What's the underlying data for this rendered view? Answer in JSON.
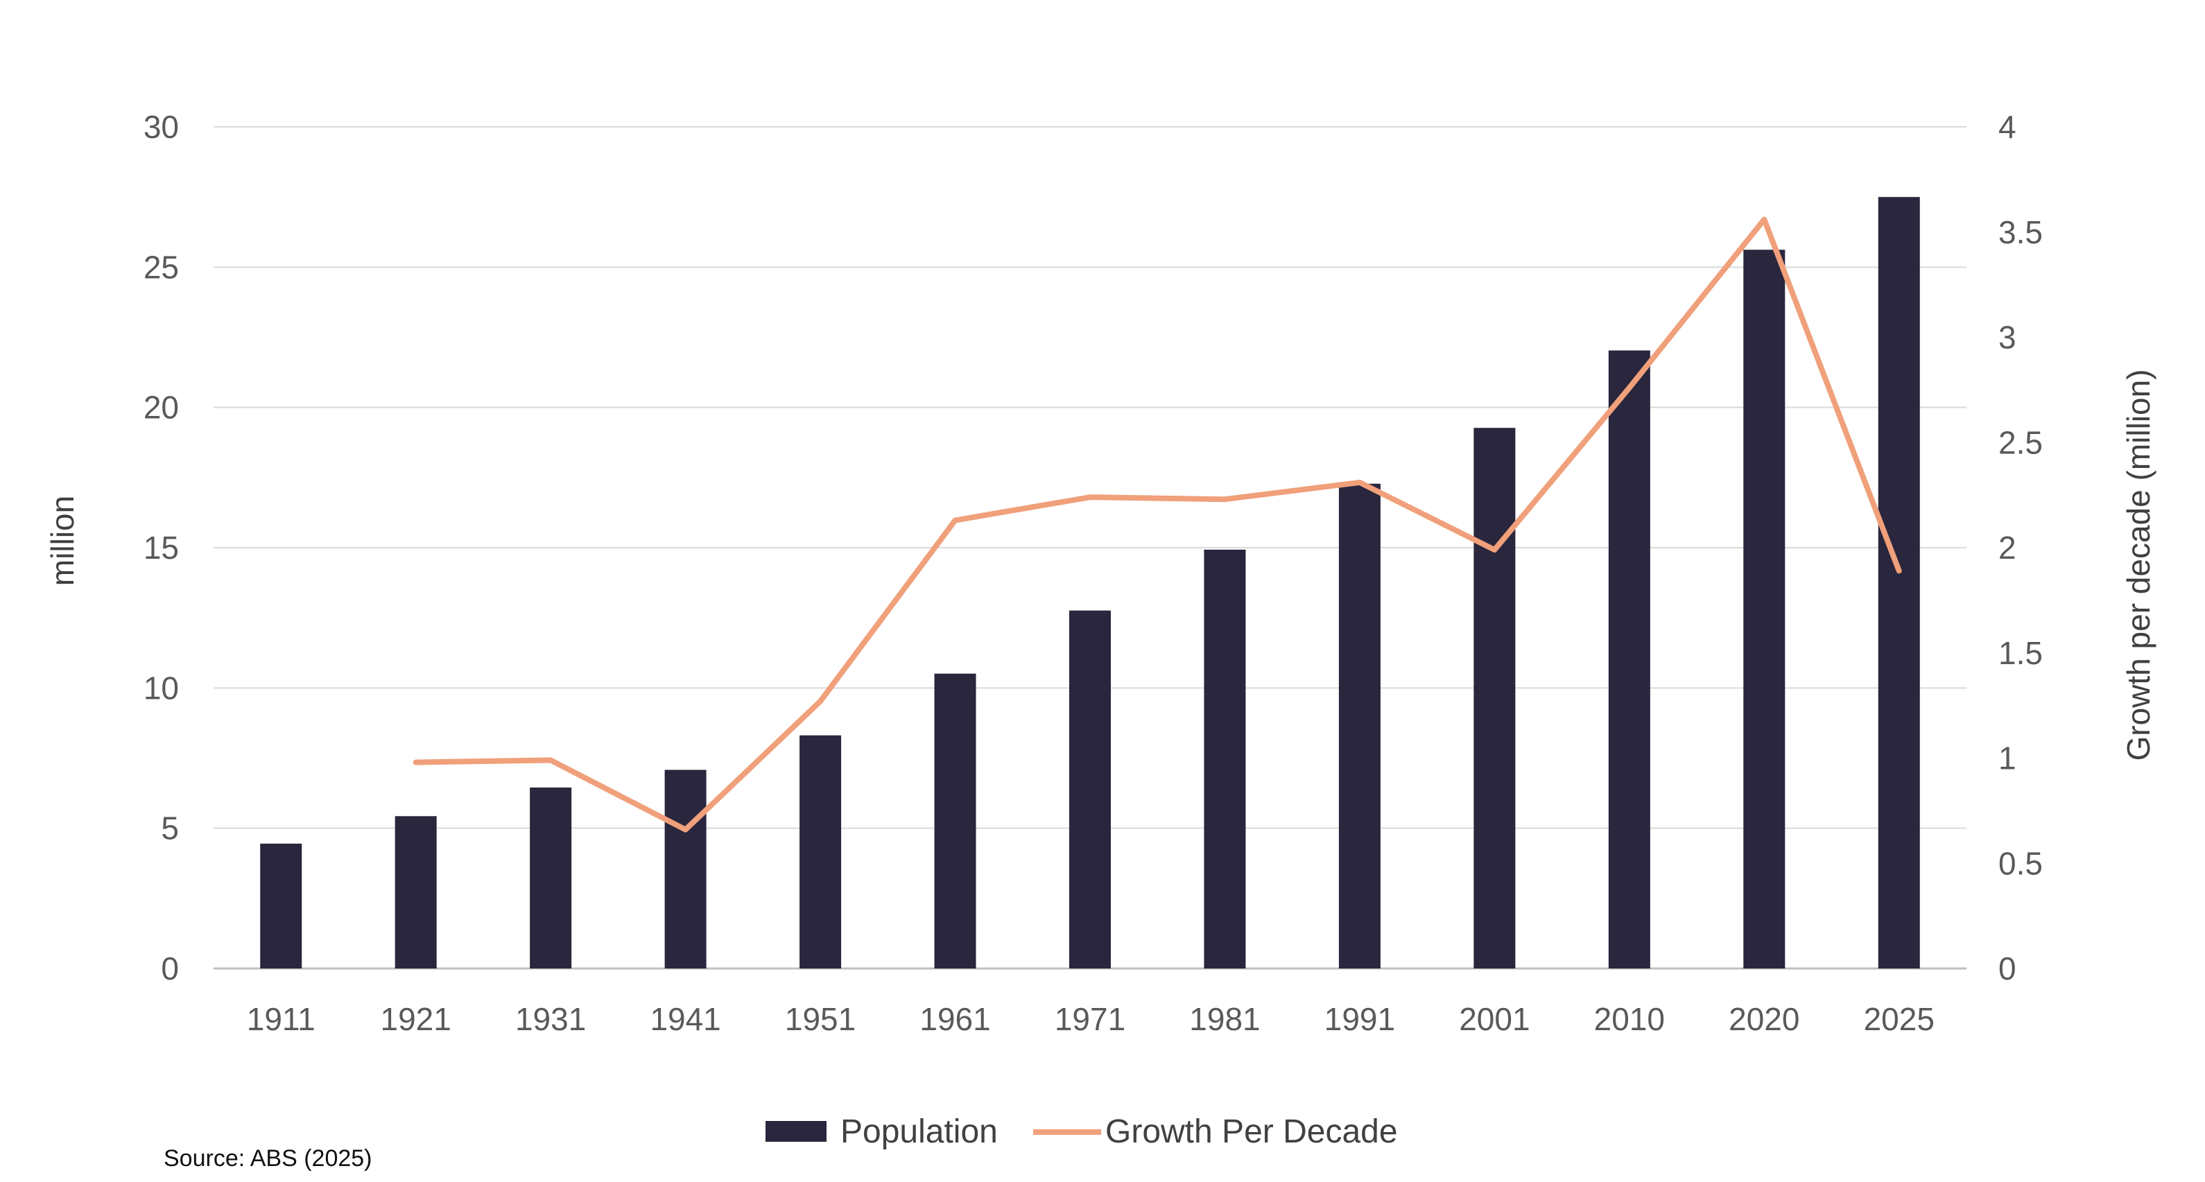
{
  "chart_data": {
    "type": "bar",
    "title": "",
    "categories": [
      "1911",
      "1921",
      "1931",
      "1941",
      "1951",
      "1961",
      "1971",
      "1981",
      "1991",
      "2001",
      "2010",
      "2020",
      "2025"
    ],
    "series": [
      {
        "name": "Population",
        "type": "bar",
        "axis": "left",
        "color": "#29263d",
        "values": [
          4.45,
          5.43,
          6.45,
          7.08,
          8.31,
          10.51,
          12.76,
          14.93,
          17.28,
          19.27,
          22.03,
          25.62,
          27.5
        ]
      },
      {
        "name": "Growth Per Decade",
        "type": "line",
        "axis": "right",
        "color": "#f0a07a",
        "values": [
          null,
          0.98,
          0.99,
          0.66,
          1.27,
          2.13,
          2.24,
          2.23,
          2.31,
          1.99,
          2.76,
          3.56,
          1.89
        ]
      }
    ],
    "ylabel": "million",
    "ylim": [
      0,
      30
    ],
    "yticks": [
      "0",
      "5",
      "10",
      "15",
      "20",
      "25",
      "30"
    ],
    "y2label": "Growth per decade (million)",
    "y2lim": [
      0,
      4
    ],
    "y2ticks": [
      "0",
      "0.5",
      "1",
      "1.5",
      "2",
      "2.5",
      "3",
      "3.5",
      "4"
    ],
    "legend": [
      "Population",
      "Growth Per Decade"
    ],
    "legend_position": "bottom",
    "grid": true
  },
  "source_note": "Source: ABS (2025)"
}
